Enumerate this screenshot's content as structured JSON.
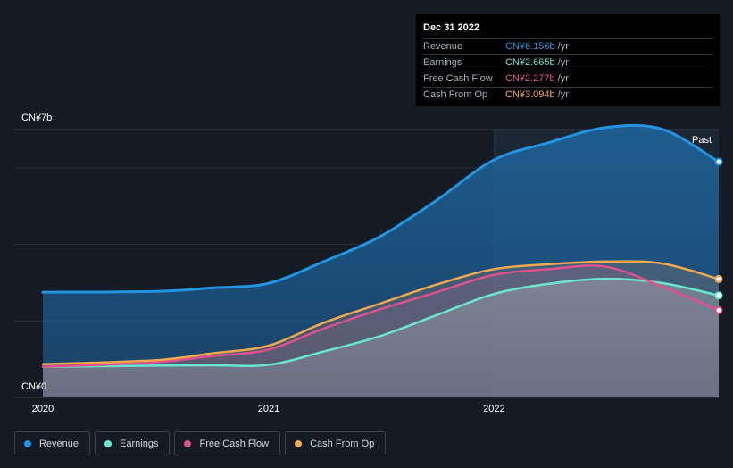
{
  "tooltip": {
    "date": "Dec 31 2022",
    "rows": [
      {
        "label": "Revenue",
        "value": "CN¥6.156b",
        "unit": "/yr",
        "color": "#2394df"
      },
      {
        "label": "Earnings",
        "value": "CN¥2.665b",
        "unit": "/yr",
        "color": "#6ce5d0"
      },
      {
        "label": "Free Cash Flow",
        "value": "CN¥2.277b",
        "unit": "/yr",
        "color": "#e0508f"
      },
      {
        "label": "Cash From Op",
        "value": "CN¥3.094b",
        "unit": "/yr",
        "color": "#f1a84f"
      }
    ]
  },
  "past_label": "Past",
  "legend": [
    {
      "label": "Revenue",
      "color": "#2394df"
    },
    {
      "label": "Earnings",
      "color": "#6ce5d0"
    },
    {
      "label": "Free Cash Flow",
      "color": "#e0508f"
    },
    {
      "label": "Cash From Op",
      "color": "#f1a84f"
    }
  ],
  "chart_data": {
    "type": "area",
    "ylabel_top": "CN¥7b",
    "ylabel_bottom": "CN¥0",
    "ylim": [
      0,
      7
    ],
    "y_unit": "CN¥ billions",
    "xlim": [
      "2020-01-01",
      "2022-12-31"
    ],
    "x_ticks": [
      "2020",
      "2021",
      "2022"
    ],
    "x_tick_dates": [
      "2020-01-01",
      "2021-01-01",
      "2022-01-01"
    ],
    "highlight_start": "2022-01-01",
    "grid": true,
    "legend_position": "bottom",
    "series": [
      {
        "name": "Revenue",
        "color": "#2394df",
        "x": [
          "2020-01-01",
          "2020-06-30",
          "2020-09-30",
          "2020-12-31",
          "2021-03-31",
          "2021-06-30",
          "2021-09-30",
          "2021-12-31",
          "2022-03-31",
          "2022-06-30",
          "2022-09-30",
          "2022-12-31"
        ],
        "values": [
          2.75,
          2.77,
          2.86,
          2.98,
          3.55,
          4.2,
          5.15,
          6.2,
          6.66,
          7.05,
          7.01,
          6.156
        ]
      },
      {
        "name": "Earnings",
        "color": "#6ce5d0",
        "x": [
          "2020-01-01",
          "2020-06-30",
          "2020-09-30",
          "2020-12-31",
          "2021-03-31",
          "2021-06-30",
          "2021-09-30",
          "2021-12-31",
          "2022-03-31",
          "2022-06-30",
          "2022-09-30",
          "2022-12-31"
        ],
        "values": [
          0.8,
          0.83,
          0.84,
          0.85,
          1.2,
          1.6,
          2.15,
          2.7,
          2.97,
          3.1,
          2.99,
          2.665
        ]
      },
      {
        "name": "Free Cash Flow",
        "color": "#e0508f",
        "x": [
          "2020-01-01",
          "2020-06-30",
          "2020-09-30",
          "2020-12-31",
          "2021-03-31",
          "2021-06-30",
          "2021-09-30",
          "2021-12-31",
          "2022-03-31",
          "2022-06-30",
          "2022-09-30",
          "2022-12-31"
        ],
        "values": [
          0.8,
          0.92,
          1.08,
          1.25,
          1.8,
          2.3,
          2.75,
          3.2,
          3.35,
          3.42,
          2.9,
          2.277
        ]
      },
      {
        "name": "Cash From Op",
        "color": "#f1a84f",
        "x": [
          "2020-01-01",
          "2020-06-30",
          "2020-09-30",
          "2020-12-31",
          "2021-03-31",
          "2021-06-30",
          "2021-09-30",
          "2021-12-31",
          "2022-03-31",
          "2022-06-30",
          "2022-09-30",
          "2022-12-31"
        ],
        "values": [
          0.87,
          0.97,
          1.15,
          1.35,
          1.95,
          2.45,
          2.95,
          3.35,
          3.48,
          3.55,
          3.5,
          3.094
        ]
      }
    ]
  }
}
